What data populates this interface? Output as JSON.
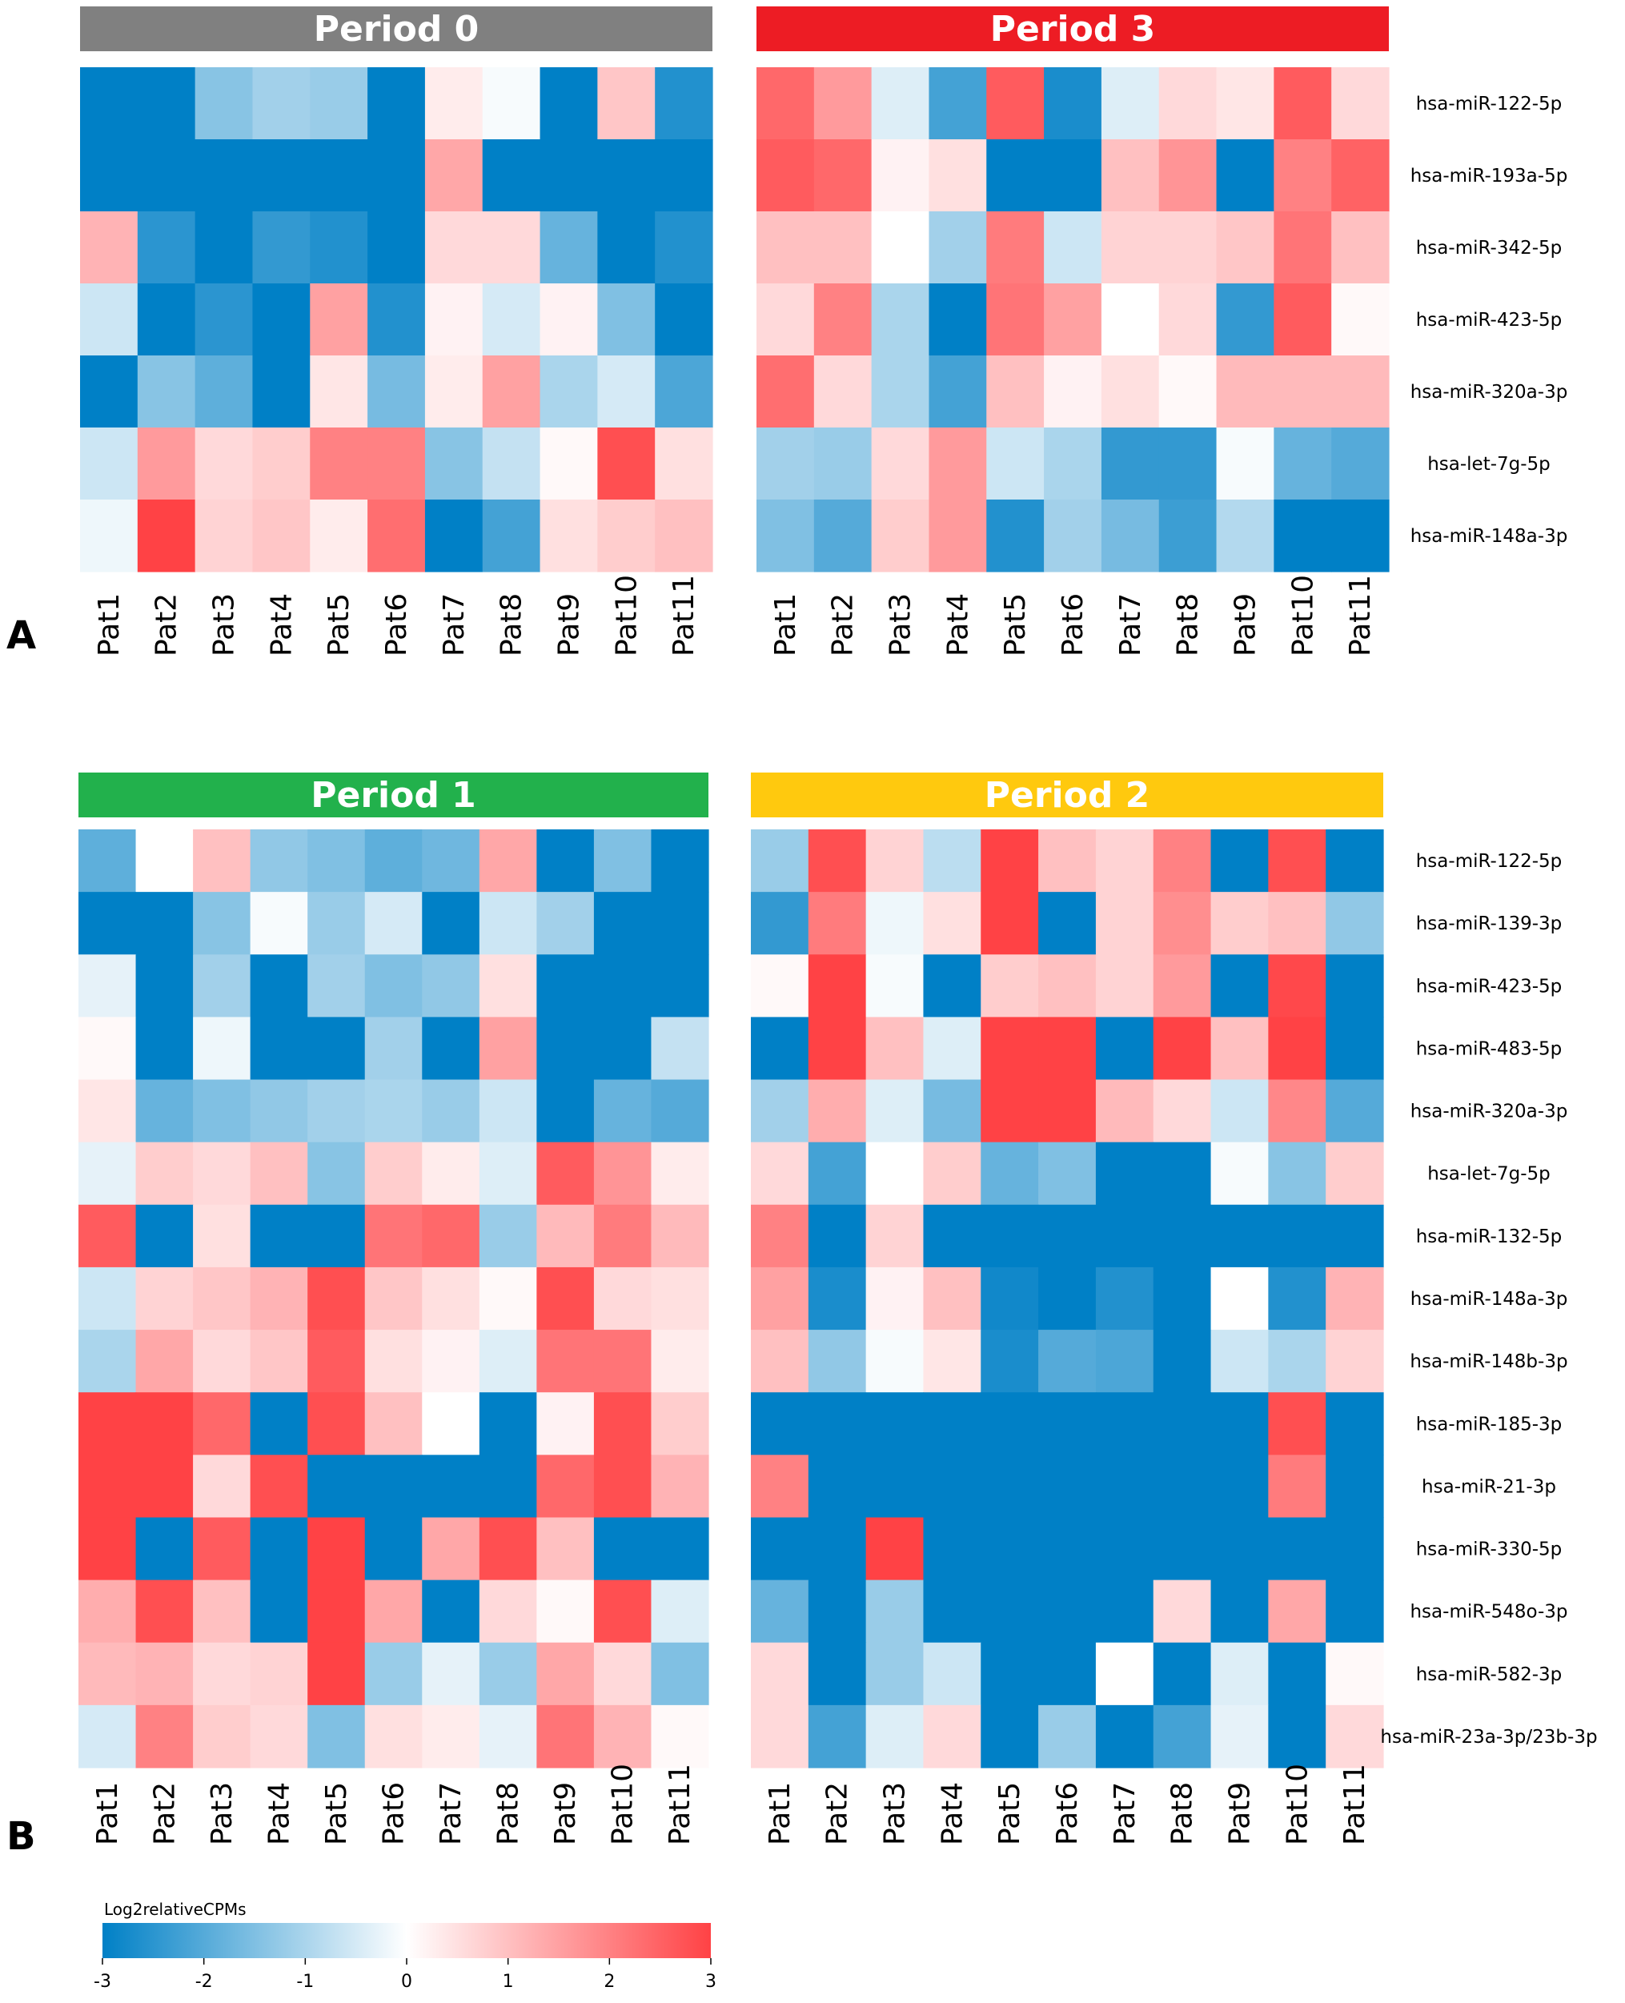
{
  "panels": [
    {
      "letter": "A",
      "heatmaps": [
        {
          "title": "Period 0",
          "header_color": "#808080",
          "columns": [
            "Pat1",
            "Pat2",
            "Pat3",
            "Pat4",
            "Pat5",
            "Pat6",
            "Pat7",
            "Pat8",
            "Pat9",
            "Pat10",
            "Pat11"
          ],
          "rows": [
            "hsa-miR-122-5p",
            "hsa-miR-193a-5p",
            "hsa-miR-342-5p",
            "hsa-miR-423-5p",
            "hsa-miR-320a-3p",
            "hsa-let-7g-5p",
            "hsa-miR-148a-3p"
          ],
          "values": [
            [
              -3,
              -3,
              -1.4,
              -1.1,
              -1.2,
              -3,
              0.3,
              -0.1,
              -3,
              0.9,
              -2.6
            ],
            [
              -3,
              -3,
              -3,
              -3,
              -3,
              -3,
              1.4,
              -3,
              -3,
              -3,
              -3
            ],
            [
              1.2,
              -2.5,
              -3,
              -2.4,
              -2.6,
              -3,
              0.6,
              0.6,
              -1.8,
              -3,
              -2.6
            ],
            [
              -0.6,
              -3,
              -2.5,
              -3,
              1.5,
              -2.6,
              0.2,
              -0.5,
              0.2,
              -1.5,
              -3
            ],
            [
              -3,
              -1.4,
              -1.9,
              -3,
              0.4,
              -1.6,
              0.3,
              1.5,
              -1,
              -0.5,
              -2.1
            ],
            [
              -0.6,
              1.6,
              0.6,
              0.8,
              2,
              2,
              -1.4,
              -0.7,
              0.1,
              2.8,
              0.5
            ],
            [
              -0.2,
              3,
              0.7,
              0.9,
              0.3,
              2.3,
              -3,
              -2.2,
              0.5,
              0.8,
              1
            ]
          ]
        },
        {
          "title": "Period 3",
          "header_color": "#ED1C24",
          "columns": [
            "Pat1",
            "Pat2",
            "Pat3",
            "Pat4",
            "Pat5",
            "Pat6",
            "Pat7",
            "Pat8",
            "Pat9",
            "Pat10",
            "Pat11"
          ],
          "rows": [
            "hsa-miR-122-5p",
            "hsa-miR-193a-5p",
            "hsa-miR-342-5p",
            "hsa-miR-423-5p",
            "hsa-miR-320a-3p",
            "hsa-let-7g-5p",
            "hsa-miR-148a-3p"
          ],
          "values": [
            [
              2.4,
              1.6,
              -0.4,
              -2.2,
              2.6,
              -2.7,
              -0.4,
              0.6,
              0.4,
              2.6,
              0.6
            ],
            [
              2.6,
              2.4,
              0.2,
              0.5,
              -3,
              -3,
              1,
              1.7,
              -3,
              2,
              2.5
            ],
            [
              1,
              1,
              0,
              -1.1,
              2.1,
              -0.6,
              0.7,
              0.7,
              0.9,
              2.2,
              1
            ],
            [
              0.6,
              2,
              -1,
              -3,
              2.2,
              1.5,
              0,
              0.6,
              -2.4,
              2.6,
              0.1
            ],
            [
              2.3,
              0.6,
              -1,
              -2.2,
              1,
              0.2,
              0.5,
              0.1,
              1.1,
              1.1,
              1.1
            ],
            [
              -1.1,
              -1.2,
              0.6,
              1.6,
              -0.6,
              -1,
              -2.4,
              -2.4,
              -0.1,
              -1.8,
              -2
            ],
            [
              -1.5,
              -2,
              0.8,
              1.6,
              -2.6,
              -1.1,
              -1.6,
              -2.3,
              -0.9,
              -3,
              -3
            ]
          ]
        }
      ]
    },
    {
      "letter": "B",
      "heatmaps": [
        {
          "title": "Period 1",
          "header_color": "#22B14C",
          "columns": [
            "Pat1",
            "Pat2",
            "Pat3",
            "Pat4",
            "Pat5",
            "Pat6",
            "Pat7",
            "Pat8",
            "Pat9",
            "Pat10",
            "Pat11"
          ],
          "rows": [
            "hsa-miR-122-5p",
            "hsa-miR-139-3p",
            "hsa-miR-423-5p",
            "hsa-miR-483-5p",
            "hsa-miR-320a-3p",
            "hsa-let-7g-5p",
            "hsa-miR-132-5p",
            "hsa-miR-148a-3p",
            "hsa-miR-148b-3p",
            "hsa-miR-185-3p",
            "hsa-miR-21-3p",
            "hsa-miR-330-5p",
            "hsa-miR-548o-3p",
            "hsa-miR-582-3p",
            "hsa-miR-23a-3p/23b-3p"
          ],
          "values": [
            [
              -1.9,
              0,
              1,
              -1.3,
              -1.5,
              -1.9,
              -1.7,
              1.4,
              -3,
              -1.5,
              -3
            ],
            [
              -3,
              -3,
              -1.4,
              -0.1,
              -1.2,
              -0.5,
              -3,
              -0.6,
              -1.1,
              -3,
              -3
            ],
            [
              -0.3,
              -3,
              -1.1,
              -3,
              -1.1,
              -1.5,
              -1.3,
              0.5,
              -3,
              -3,
              -3
            ],
            [
              0.1,
              -3,
              -0.2,
              -3,
              -3,
              -1.1,
              -3,
              1.5,
              -3,
              -3,
              -0.7
            ],
            [
              0.4,
              -1.8,
              -1.5,
              -1.3,
              -1.1,
              -1,
              -1.2,
              -0.6,
              -3,
              -1.8,
              -2
            ],
            [
              -0.3,
              0.8,
              0.6,
              1,
              -1.4,
              0.8,
              0.3,
              -0.4,
              2.6,
              1.7,
              0.3
            ],
            [
              2.6,
              -3,
              0.5,
              -3,
              -3,
              2.2,
              2.4,
              -1.2,
              1.1,
              2.1,
              1.1
            ],
            [
              -0.6,
              0.7,
              0.9,
              1.2,
              2.8,
              0.9,
              0.5,
              0.1,
              2.8,
              0.6,
              0.5
            ],
            [
              -1,
              1.4,
              0.6,
              0.9,
              2.6,
              0.5,
              0.2,
              -0.4,
              2.2,
              2.2,
              0.3
            ],
            [
              3,
              3,
              2.4,
              -3,
              2.8,
              1,
              0,
              -3,
              0.2,
              2.8,
              0.8
            ],
            [
              3,
              3,
              0.6,
              2.8,
              -3,
              -3,
              -3,
              -3,
              2.4,
              2.8,
              1.2
            ],
            [
              3,
              -3,
              2.6,
              -3,
              3,
              -3,
              1.4,
              2.8,
              1,
              -3,
              -3
            ],
            [
              1.3,
              2.8,
              1,
              -3,
              3,
              1.4,
              -3,
              0.6,
              0.1,
              2.8,
              -0.4
            ],
            [
              1.1,
              1.2,
              0.6,
              0.7,
              3,
              -1.2,
              -0.3,
              -1.2,
              1.4,
              0.6,
              -1.5
            ],
            [
              -0.5,
              2,
              0.8,
              0.6,
              -1.5,
              0.5,
              0.3,
              -0.3,
              2.2,
              1.2,
              0.1
            ]
          ]
        },
        {
          "title": "Period 2",
          "header_color": "#FFC90E",
          "columns": [
            "Pat1",
            "Pat2",
            "Pat3",
            "Pat4",
            "Pat5",
            "Pat6",
            "Pat7",
            "Pat8",
            "Pat9",
            "Pat10",
            "Pat11"
          ],
          "rows": [
            "hsa-miR-122-5p",
            "hsa-miR-139-3p",
            "hsa-miR-423-5p",
            "hsa-miR-483-5p",
            "hsa-miR-320a-3p",
            "hsa-let-7g-5p",
            "hsa-miR-132-5p",
            "hsa-miR-148a-3p",
            "hsa-miR-148b-3p",
            "hsa-miR-185-3p",
            "hsa-miR-21-3p",
            "hsa-miR-330-5p",
            "hsa-miR-548o-3p",
            "hsa-miR-582-3p",
            "hsa-miR-23a-3p/23b-3p"
          ],
          "values": [
            [
              -1.2,
              2.8,
              0.7,
              -0.8,
              3,
              1,
              0.7,
              2,
              -3,
              2.8,
              -3
            ],
            [
              -2.4,
              2.1,
              -0.2,
              0.5,
              3,
              -3,
              0.7,
              1.8,
              0.8,
              1,
              -1.3
            ],
            [
              0.1,
              3,
              -0.1,
              -3,
              0.8,
              1,
              0.7,
              1.6,
              -3,
              2.9,
              -3
            ],
            [
              -3,
              3,
              1,
              -0.4,
              3,
              3,
              -3,
              3,
              1,
              3,
              -3
            ],
            [
              -1.1,
              1.3,
              -0.4,
              -1.6,
              3,
              3,
              1.1,
              0.6,
              -0.6,
              1.9,
              -2
            ],
            [
              0.6,
              -2.2,
              0,
              0.8,
              -1.8,
              -1.5,
              -3,
              -3,
              -0.1,
              -1.4,
              0.8
            ],
            [
              2,
              -3,
              0.7,
              -3,
              -3,
              -3,
              -3,
              -3,
              -3,
              -3,
              -3
            ],
            [
              1.5,
              -2.7,
              0.2,
              1,
              -2.8,
              -3,
              -2.6,
              -3,
              0,
              -2.6,
              1.2
            ],
            [
              1,
              -1.3,
              -0.1,
              0.4,
              -2.7,
              -2,
              -2.1,
              -3,
              -0.6,
              -1,
              0.7
            ],
            [
              -3,
              -3,
              -3,
              -3,
              -3,
              -3,
              -3,
              -3,
              -3,
              2.8,
              -3
            ],
            [
              2,
              -3,
              -3,
              -3,
              -3,
              -3,
              -3,
              -3,
              -3,
              2.1,
              -3
            ],
            [
              -3,
              -3,
              3,
              -3,
              -3,
              -3,
              -3,
              -3,
              -3,
              -3,
              -3
            ],
            [
              -1.8,
              -3,
              -1.2,
              -3,
              -3,
              -3,
              -3,
              0.6,
              -3,
              1.4,
              -3
            ],
            [
              0.6,
              -3,
              -1.2,
              -0.6,
              -3,
              -3,
              0,
              -3,
              -0.4,
              -3,
              0.1
            ],
            [
              0.6,
              -2.2,
              -0.4,
              0.6,
              -3,
              -1.2,
              -3,
              -2.2,
              -0.3,
              -3,
              0.6
            ]
          ]
        }
      ]
    }
  ],
  "legend": {
    "title": "Log2relativeCPMs",
    "ticks": [
      "-3",
      "-2",
      "-1",
      "0",
      "1",
      "2",
      "3"
    ],
    "tick_values": [
      -3,
      -2,
      -1,
      0,
      1,
      2,
      3
    ]
  },
  "colors": {
    "low": "#0080C6",
    "mid": "#FFFFFF",
    "high": "#FF4245"
  },
  "chart_data": [
    {
      "type": "heatmap",
      "title": "Period 0",
      "x": "Pat1..Pat11",
      "legend": "Log2relativeCPMs",
      "range": [
        -3,
        3
      ]
    },
    {
      "type": "heatmap",
      "title": "Period 3",
      "x": "Pat1..Pat11",
      "legend": "Log2relativeCPMs",
      "range": [
        -3,
        3
      ]
    },
    {
      "type": "heatmap",
      "title": "Period 1",
      "x": "Pat1..Pat11",
      "legend": "Log2relativeCPMs",
      "range": [
        -3,
        3
      ]
    },
    {
      "type": "heatmap",
      "title": "Period 2",
      "x": "Pat1..Pat11",
      "legend": "Log2relativeCPMs",
      "range": [
        -3,
        3
      ]
    }
  ]
}
